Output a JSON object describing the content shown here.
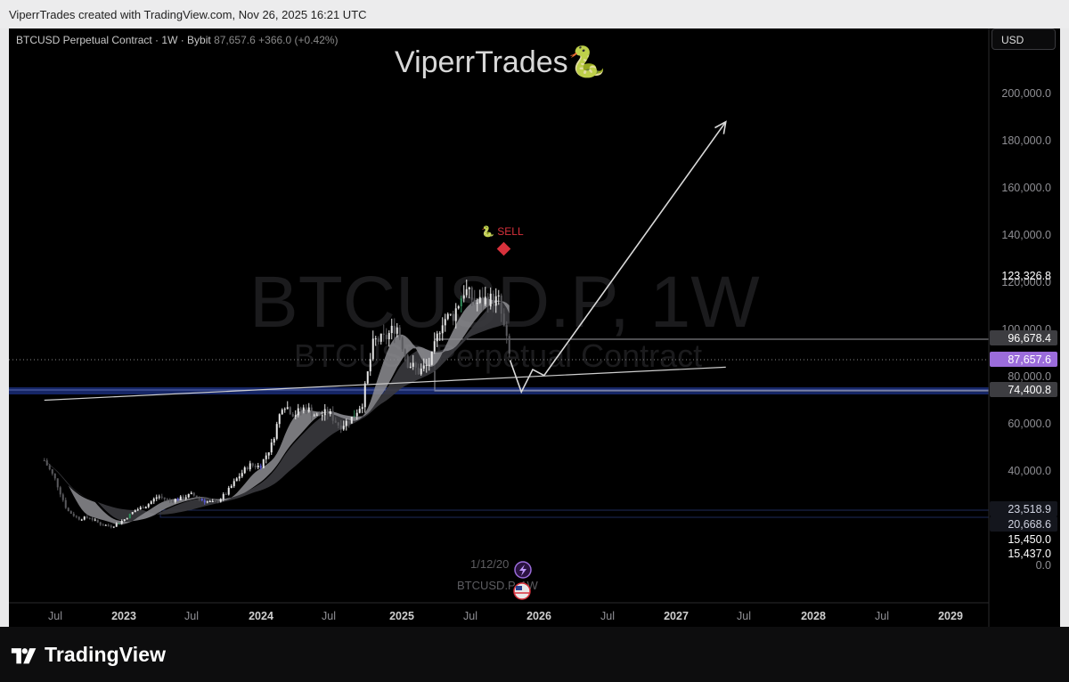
{
  "header": {
    "credit": "ViperrTrades created with TradingView.com, Nov 26, 2025 16:21 UTC"
  },
  "symbol_info": {
    "name": "BTCUSD Perpetual Contract · 1W · Bybit",
    "price": "87,657.6",
    "change": "+366.0 (+0.42%)"
  },
  "brand": {
    "text": "ViperrTrades🐍"
  },
  "currency_button": {
    "label": "USD"
  },
  "watermark": {
    "ticker": "BTCUSD.P, 1W",
    "subtitle": "BTCUSD Perpetual Contract"
  },
  "signal": {
    "label": "🐍 SELL"
  },
  "event": {
    "date": "1/12/20",
    "symbol": "BTCUSD.P, 1W"
  },
  "footer": {
    "logo_text": "TradingView"
  },
  "colors": {
    "background": "#000000",
    "bull": "#e8e8e8",
    "bear": "#5a5a5e",
    "ribbon": "#8d8d92",
    "support_zone": "#1c2f80",
    "sell_marker": "#d8313c",
    "current_price_label": "#9b6cdb",
    "projection": "#d9d9d9"
  },
  "chart_data": {
    "type": "candlestick",
    "interval": "1W",
    "x_axis_labels": [
      "Jul",
      "2023",
      "Jul",
      "2024",
      "Jul",
      "2025",
      "Jul",
      "2026",
      "Jul",
      "2027",
      "Jul",
      "2028",
      "Jul",
      "2029"
    ],
    "y_axis_labels": [
      "200,000.0",
      "180,000.0",
      "160,000.0",
      "140,000.0",
      "120,000.0",
      "100,000.0",
      "80,000.0",
      "60,000.0",
      "40,000.0",
      "0.0"
    ],
    "y_ticks": [
      200000,
      180000,
      160000,
      140000,
      120000,
      100000,
      80000,
      60000,
      40000
    ],
    "price_labels": [
      {
        "value": 123326.8,
        "text": "123,326.8",
        "style": "plain"
      },
      {
        "value": 96678.4,
        "text": "96,678.4",
        "style": "gray"
      },
      {
        "value": 87657.6,
        "text": "87,657.6",
        "style": "purple"
      },
      {
        "value": 74400.8,
        "text": "74,400.8",
        "style": "gray"
      },
      {
        "value": 23518.9,
        "text": "23,518.9",
        "style": "dark"
      },
      {
        "value": 20668.6,
        "text": "20,668.6",
        "style": "dark"
      },
      {
        "value": 15450.0,
        "text": "15,450.0",
        "style": "plain"
      },
      {
        "value": 15437.0,
        "text": "15,437.0",
        "style": "plain"
      }
    ],
    "current_price": 87657.6,
    "levels": [
      {
        "name": "resistance",
        "value": 96678.4
      },
      {
        "name": "support",
        "value": 74400.8
      },
      {
        "name": "cycle-low-high",
        "value": 23518.9
      },
      {
        "name": "cycle-low-low",
        "value": 20668.6
      }
    ],
    "trendline": [
      [
        "2022-06",
        70000
      ],
      [
        "2027-06",
        84000
      ]
    ],
    "projection_path": [
      [
        "2025-11",
        87000
      ],
      [
        "2025-12",
        73500
      ],
      [
        "2026-01",
        83000
      ],
      [
        "2026-02",
        80500
      ],
      [
        "2027-06",
        188000
      ]
    ],
    "close_series": [
      [
        "2022-06",
        44500
      ],
      [
        "2022-07",
        36000
      ],
      [
        "2022-08",
        23500
      ],
      [
        "2022-09",
        20000
      ],
      [
        "2022-10",
        20500
      ],
      [
        "2022-11",
        17500
      ],
      [
        "2022-12",
        16800
      ],
      [
        "2023-01",
        19500
      ],
      [
        "2023-02",
        23500
      ],
      [
        "2023-03",
        25500
      ],
      [
        "2023-04",
        29500
      ],
      [
        "2023-05",
        27500
      ],
      [
        "2023-06",
        28500
      ],
      [
        "2023-07",
        30200
      ],
      [
        "2023-08",
        27500
      ],
      [
        "2023-09",
        26500
      ],
      [
        "2023-10",
        30500
      ],
      [
        "2023-11",
        37000
      ],
      [
        "2023-12",
        42500
      ],
      [
        "2024-01",
        42000
      ],
      [
        "2024-02",
        51000
      ],
      [
        "2024-03",
        69000
      ],
      [
        "2024-04",
        64000
      ],
      [
        "2024-05",
        67000
      ],
      [
        "2024-06",
        63000
      ],
      [
        "2024-07",
        65000
      ],
      [
        "2024-08",
        59000
      ],
      [
        "2024-09",
        62000
      ],
      [
        "2024-10",
        69000
      ],
      [
        "2024-11",
        95000
      ],
      [
        "2024-12",
        96000
      ],
      [
        "2025-01",
        102000
      ],
      [
        "2025-02",
        86000
      ],
      [
        "2025-03",
        82000
      ],
      [
        "2025-04",
        86000
      ],
      [
        "2025-05",
        104000
      ],
      [
        "2025-06",
        106000
      ],
      [
        "2025-07",
        117000
      ],
      [
        "2025-08",
        111000
      ],
      [
        "2025-09",
        113000
      ],
      [
        "2025-10",
        112000
      ],
      [
        "2025-11",
        87657.6
      ]
    ]
  }
}
